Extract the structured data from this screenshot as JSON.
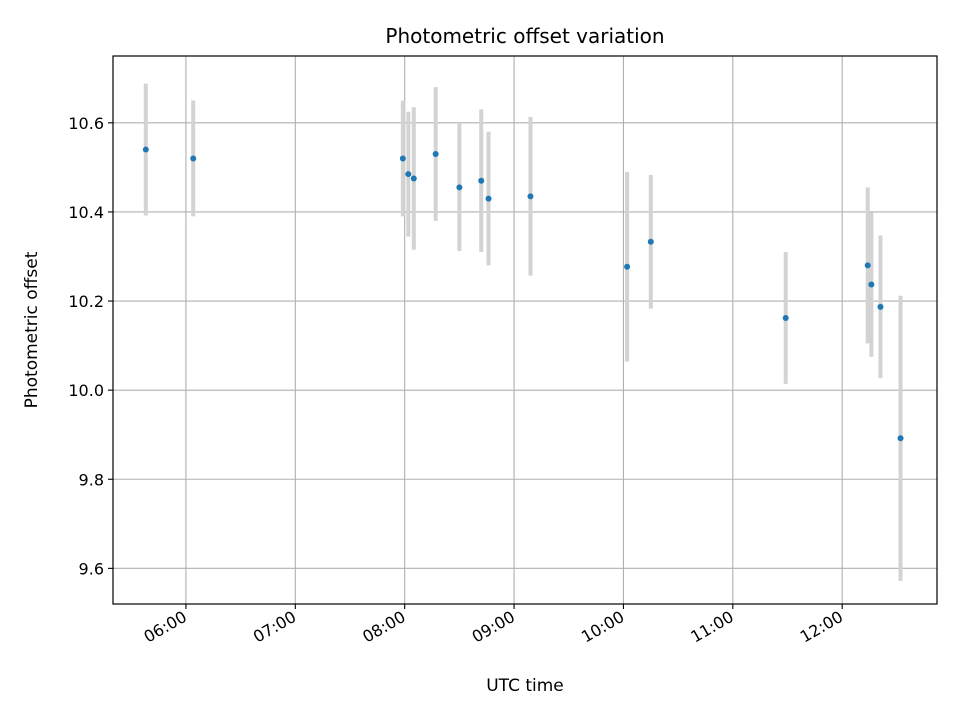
{
  "chart_data": {
    "type": "scatter",
    "title": "Photometric offset variation",
    "xlabel": "UTC time",
    "ylabel": "Photometric offset",
    "x_ticks": [
      "06:00",
      "07:00",
      "08:00",
      "09:00",
      "10:00",
      "11:00",
      "12:00"
    ],
    "y_ticks": [
      "9.6",
      "9.8",
      "10.0",
      "10.2",
      "10.4",
      "10.6"
    ],
    "xlim": [
      "05:20",
      "12:52"
    ],
    "ylim": [
      9.52,
      10.75
    ],
    "grid": true,
    "colors": {
      "points": "#1f77b4",
      "errorbars": "#d3d3d3",
      "grid": "#b0b0b0"
    },
    "points": [
      {
        "x": "05:38",
        "y": 10.54,
        "yerr": 0.148
      },
      {
        "x": "06:04",
        "y": 10.52,
        "yerr": 0.13
      },
      {
        "x": "07:59",
        "y": 10.52,
        "yerr": 0.13
      },
      {
        "x": "08:02",
        "y": 10.485,
        "yerr": 0.14
      },
      {
        "x": "08:05",
        "y": 10.475,
        "yerr": 0.16
      },
      {
        "x": "08:17",
        "y": 10.53,
        "yerr": 0.15
      },
      {
        "x": "08:30",
        "y": 10.455,
        "yerr": 0.143
      },
      {
        "x": "08:42",
        "y": 10.47,
        "yerr": 0.16
      },
      {
        "x": "08:46",
        "y": 10.43,
        "yerr": 0.15
      },
      {
        "x": "09:09",
        "y": 10.435,
        "yerr": 0.178
      },
      {
        "x": "10:02",
        "y": 10.277,
        "yerr": 0.213
      },
      {
        "x": "10:15",
        "y": 10.333,
        "yerr": 0.15
      },
      {
        "x": "11:29",
        "y": 10.162,
        "yerr": 0.148
      },
      {
        "x": "12:14",
        "y": 10.28,
        "yerr": 0.175
      },
      {
        "x": "12:16",
        "y": 10.237,
        "yerr": 0.162
      },
      {
        "x": "12:21",
        "y": 10.187,
        "yerr": 0.16
      },
      {
        "x": "12:32",
        "y": 9.892,
        "yerr": 0.32
      }
    ]
  }
}
